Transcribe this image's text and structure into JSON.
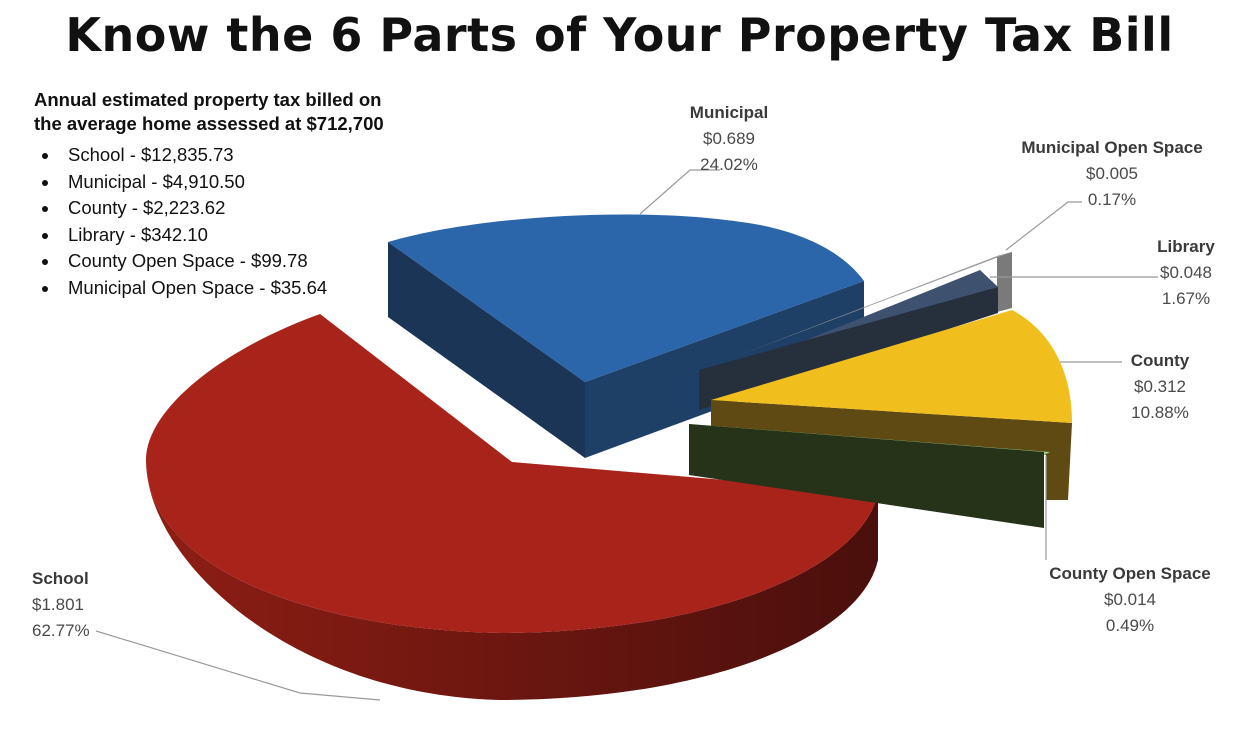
{
  "title": "Know the 6 Parts of Your Property Tax Bill",
  "summary": {
    "heading_line1": "Annual estimated property tax billed on",
    "heading_line2": "the average home assessed at $712,700",
    "items": [
      "School - $12,835.73",
      "Municipal - $4,910.50",
      "County - $2,223.62",
      "Library - $342.10",
      "County Open Space - $99.78",
      "Municipal Open Space - $35.64"
    ]
  },
  "chart_data": {
    "type": "pie",
    "title": "Know the 6 Parts of Your Property Tax Bill",
    "style": "3d-exploded",
    "slices": [
      {
        "name": "School",
        "value": "$1.801",
        "percent": "62.77%",
        "share": 62.77,
        "color": "#a8231a"
      },
      {
        "name": "Municipal",
        "value": "$0.689",
        "percent": "24.02%",
        "share": 24.02,
        "color": "#2b66aa"
      },
      {
        "name": "Municipal Open Space",
        "value": "$0.005",
        "percent": "0.17%",
        "share": 0.17,
        "color": "#9a9a9a"
      },
      {
        "name": "Library",
        "value": "$0.048",
        "percent": "1.67%",
        "share": 1.67,
        "color": "#3e5270"
      },
      {
        "name": "County",
        "value": "$0.312",
        "percent": "10.88%",
        "share": 10.88,
        "color": "#f0bf1e"
      },
      {
        "name": "County Open Space",
        "value": "$0.014",
        "percent": "0.49%",
        "share": 0.49,
        "color": "#9bd08a"
      }
    ]
  }
}
